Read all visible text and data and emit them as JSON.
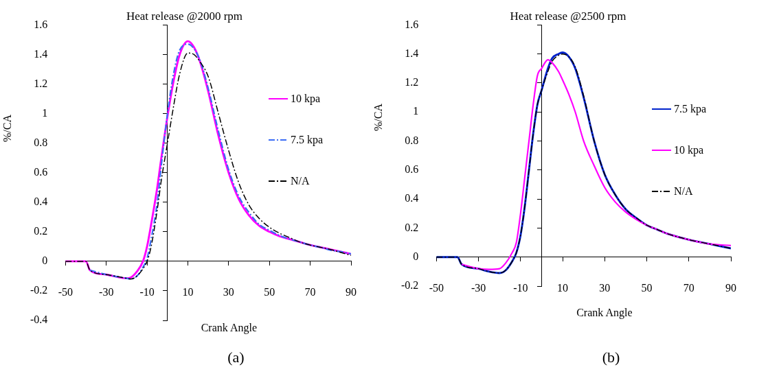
{
  "chart_data": [
    {
      "type": "line",
      "title": "Heat release @2000 rpm",
      "xlabel": "Crank Angle",
      "ylabel": "%/CA",
      "annotations": [
        "(a)"
      ],
      "x": [
        -50,
        -40,
        -38,
        -30,
        -20,
        -18,
        -15,
        -12,
        -10,
        -8,
        -5,
        -3,
        0,
        3,
        6,
        10,
        13,
        16,
        20,
        25,
        30,
        35,
        40,
        45,
        50,
        55,
        60,
        65,
        70,
        75,
        80,
        85,
        90
      ],
      "series": [
        {
          "name": "10 kpa",
          "color": "#ff00ff",
          "line_style": "solid",
          "values": [
            0,
            0,
            -0.06,
            -0.09,
            -0.115,
            -0.11,
            -0.07,
            0,
            0.1,
            0.25,
            0.5,
            0.7,
            0.98,
            1.22,
            1.4,
            1.49,
            1.45,
            1.35,
            1.15,
            0.85,
            0.6,
            0.42,
            0.31,
            0.24,
            0.2,
            0.17,
            0.15,
            0.13,
            0.11,
            0.095,
            0.08,
            0.065,
            0.05
          ]
        },
        {
          "name": "7.5 kpa",
          "color": "#3b6cf5",
          "line_style": "dashed",
          "values": [
            null,
            null,
            -0.06,
            -0.09,
            -0.115,
            -0.12,
            -0.1,
            -0.04,
            0.02,
            0.15,
            0.4,
            0.65,
            1.0,
            1.27,
            1.43,
            1.47,
            1.44,
            1.36,
            1.17,
            0.88,
            0.62,
            0.44,
            0.33,
            0.25,
            0.21,
            0.175,
            0.15,
            0.13,
            0.11,
            0.095,
            0.075,
            0.065,
            0.05
          ]
        },
        {
          "name": "N/A",
          "color": "#000000",
          "line_style": "dashed",
          "values": [
            0,
            0,
            -0.06,
            -0.09,
            -0.115,
            -0.12,
            -0.1,
            -0.05,
            0,
            0.1,
            0.35,
            0.55,
            0.8,
            1.05,
            1.27,
            1.41,
            1.4,
            1.35,
            1.25,
            1.0,
            0.75,
            0.53,
            0.38,
            0.29,
            0.23,
            0.19,
            0.16,
            0.13,
            0.11,
            0.095,
            0.08,
            0.06,
            0.04
          ]
        }
      ],
      "xlim": [
        -50,
        90
      ],
      "xticks": [
        -50,
        -30,
        -10,
        10,
        30,
        50,
        70,
        90
      ],
      "ylim": [
        -0.4,
        1.6
      ],
      "yticks": [
        -0.4,
        -0.2,
        0,
        0.2,
        0.4,
        0.6,
        0.8,
        1,
        1.2,
        1.4,
        1.6
      ],
      "grid": false,
      "legend": "right",
      "marker": "none"
    },
    {
      "type": "line",
      "title": "Heat release @2500 rpm",
      "xlabel": "Crank Angle",
      "ylabel": "%/CA",
      "annotations": [
        "(b)"
      ],
      "x": [
        -50,
        -40,
        -38,
        -30,
        -25,
        -20,
        -17,
        -14,
        -12,
        -10,
        -8,
        -6,
        -4,
        -2,
        0,
        3,
        5,
        8,
        10,
        13,
        16,
        20,
        25,
        30,
        35,
        40,
        45,
        50,
        55,
        60,
        70,
        80,
        90
      ],
      "series": [
        {
          "name": "7.5 kpa",
          "color": "#0022cc",
          "line_style": "solid",
          "values": [
            0,
            0,
            -0.05,
            -0.08,
            -0.1,
            -0.11,
            -0.09,
            -0.03,
            0.03,
            0.15,
            0.35,
            0.6,
            0.85,
            1.05,
            1.15,
            1.3,
            1.37,
            1.4,
            1.41,
            1.38,
            1.3,
            1.1,
            0.8,
            0.57,
            0.43,
            0.33,
            0.27,
            0.22,
            0.19,
            0.16,
            0.12,
            0.09,
            0.06
          ]
        },
        {
          "name": "10 kpa",
          "color": "#ff00ff",
          "line_style": "solid",
          "values": [
            null,
            null,
            -0.05,
            -0.08,
            -0.085,
            -0.08,
            -0.04,
            0.03,
            0.1,
            0.3,
            0.55,
            0.8,
            1.05,
            1.25,
            1.3,
            1.36,
            1.34,
            1.28,
            1.22,
            1.12,
            1.0,
            0.8,
            0.63,
            0.48,
            0.38,
            0.31,
            0.26,
            0.22,
            0.19,
            0.16,
            0.12,
            0.09,
            0.08
          ]
        },
        {
          "name": "N/A",
          "color": "#000000",
          "line_style": "dashed",
          "values": [
            0,
            0,
            -0.05,
            -0.08,
            -0.1,
            -0.11,
            -0.09,
            -0.03,
            0.03,
            0.15,
            0.35,
            0.6,
            0.85,
            1.05,
            1.15,
            1.28,
            1.35,
            1.39,
            1.4,
            1.38,
            1.31,
            1.11,
            0.8,
            0.57,
            0.43,
            0.33,
            0.27,
            0.22,
            0.19,
            0.16,
            0.12,
            0.09,
            0.06
          ]
        }
      ],
      "xlim": [
        -50,
        90
      ],
      "xticks": [
        -50,
        -30,
        -10,
        10,
        30,
        50,
        70,
        90
      ],
      "ylim": [
        -0.2,
        1.6
      ],
      "yticks": [
        -0.2,
        0,
        0.2,
        0.4,
        0.6,
        0.8,
        1,
        1.2,
        1.4,
        1.6
      ],
      "grid": false,
      "legend": "right",
      "marker": "none"
    }
  ]
}
